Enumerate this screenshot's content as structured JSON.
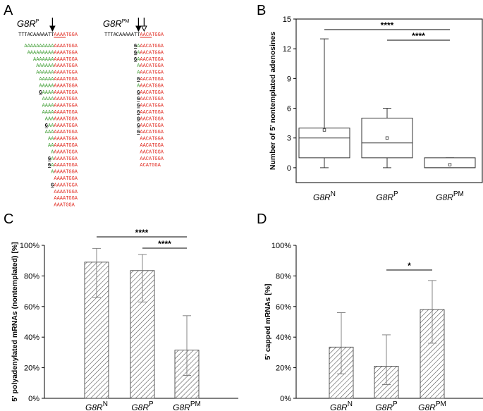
{
  "panels": {
    "a": "A",
    "b": "B",
    "c": "C",
    "d": "D"
  },
  "colors": {
    "green": "#3a9a2e",
    "red": "#e0281e",
    "axis": "#000000",
    "box": "#333333",
    "err": "#777777"
  },
  "panel_a": {
    "columns": [
      {
        "title_main": "G8R",
        "title_sup": "P",
        "reference": {
          "prefix": "TTTACAAAAATT",
          "suffix": "AAAATGGA"
        },
        "arrows": [
          "filled"
        ],
        "reads": [
          {
            "green": "AAAAAAAAAA",
            "red": "AAAATGGA"
          },
          {
            "green": "AAAAAAAAA",
            "red": "AAAATGGA"
          },
          {
            "green": "AAAAAAA",
            "red": "AAAATGGA"
          },
          {
            "green": "AAAAAA",
            "red": "AAAATGGA"
          },
          {
            "green": "AAAAAA",
            "red": "AAAATGGA"
          },
          {
            "green": "AAAAA",
            "red": "AAAATGGA"
          },
          {
            "green": "AAAAA",
            "red": "AAAATGGA"
          },
          {
            "mut": "G",
            "green": "AAAA",
            "red": "AAAATGGA"
          },
          {
            "green": "AAAA",
            "red": "AAAATGGA"
          },
          {
            "green": "AAAA",
            "red": "AAAATGGA"
          },
          {
            "green": "AAAA",
            "red": "AAAATGGA"
          },
          {
            "green": "AAA",
            "red": "AAAATGGA"
          },
          {
            "mut": "G",
            "green": "AA",
            "red": "AAAATGGA"
          },
          {
            "green": "AAA",
            "red": "AAAATGGA"
          },
          {
            "green": "AA",
            "red": "AAAATGGA"
          },
          {
            "green": "AA",
            "red": "AAAATGGA"
          },
          {
            "green": "A",
            "red": "AAAATGGA"
          },
          {
            "mut": "G",
            "green": "A",
            "red": "AAAATGGA"
          },
          {
            "mut": "G",
            "green": "A",
            "red": "AAAATGGA"
          },
          {
            "green": "A",
            "red": "AAAATGGA"
          },
          {
            "green": "",
            "red": "AAAATGGA"
          },
          {
            "mut": "G",
            "green": "",
            "red": "AAAATGGA"
          },
          {
            "green": "",
            "red": "AAAATGGA"
          },
          {
            "green": "",
            "red": "AAAATGGA"
          },
          {
            "green": "",
            "red": "AAATGGA"
          }
        ]
      },
      {
        "title_main": "G8R",
        "title_sup": "PM",
        "reference": {
          "prefix": "TTTACAAAAATT",
          "suffix": "AACATGGA"
        },
        "arrows": [
          "filled",
          "open"
        ],
        "reads": [
          {
            "mut": "G",
            "green": "A",
            "red": "AACATGGA"
          },
          {
            "mut": "G",
            "green": "A",
            "red": "AACATGGA"
          },
          {
            "mut": "G",
            "green": "A",
            "red": "AACATGGA"
          },
          {
            "green": "A",
            "red": "AACATGGA"
          },
          {
            "green": "A",
            "red": "AACATGGA"
          },
          {
            "mut": "G",
            "green": "",
            "red": "AACATGGA"
          },
          {
            "green": "A",
            "red": "AACATGGA"
          },
          {
            "mut": "G",
            "green": "",
            "red": "AACATGGA"
          },
          {
            "mut": "G",
            "green": "",
            "red": "AACATGGA"
          },
          {
            "mut": "G",
            "green": "",
            "red": "AACATGGA"
          },
          {
            "mut": "G",
            "green": "",
            "red": "AACATGGA"
          },
          {
            "mut": "G",
            "green": "",
            "red": "AACATGGA"
          },
          {
            "mut": "G",
            "green": "",
            "red": "AACATGGA"
          },
          {
            "mut": "G",
            "green": "",
            "red": "AACATGGA"
          },
          {
            "green": "",
            "red": "AACATGGA"
          },
          {
            "green": "",
            "red": "AACATGGA"
          },
          {
            "green": "",
            "red": "AACATGGA"
          },
          {
            "green": "",
            "red": "AACATGGA"
          },
          {
            "green": "",
            "red": "ACATGGA"
          }
        ]
      }
    ]
  },
  "chart_data": [
    {
      "id": "B",
      "type": "box",
      "ylabel": "Number of 5' nontemplated adenosines",
      "ylim": [
        -1.5,
        15
      ],
      "yticks": [
        0,
        3,
        6,
        9,
        12,
        15
      ],
      "categories": [
        {
          "main": "G8R",
          "sup": "N"
        },
        {
          "main": "G8R",
          "sup": "P"
        },
        {
          "main": "G8R",
          "sup": "PM"
        }
      ],
      "boxes": [
        {
          "min": 0,
          "q1": 1,
          "median": 3,
          "q3": 4,
          "max": 13,
          "mean": 3.8
        },
        {
          "min": 0,
          "q1": 1,
          "median": 2.5,
          "q3": 5,
          "max": 6,
          "mean": 3
        },
        {
          "min": 0,
          "q1": 0,
          "median": 0,
          "q3": 1,
          "max": 1,
          "mean": 0.3
        }
      ],
      "significance": [
        {
          "from": 0,
          "to": 2,
          "label": "****"
        },
        {
          "from": 1,
          "to": 2,
          "label": "****"
        }
      ]
    },
    {
      "id": "C",
      "type": "bar",
      "ylabel": "5' polyadenylated mRNAs (nontemplated) [%]",
      "ylim": [
        0,
        100
      ],
      "yticks": [
        "0%",
        "20%",
        "40%",
        "60%",
        "80%",
        "100%"
      ],
      "categories": [
        {
          "main": "G8R",
          "sup": "N"
        },
        {
          "main": "G8R",
          "sup": "P"
        },
        {
          "main": "G8R",
          "sup": "PM"
        }
      ],
      "values": [
        89,
        83.5,
        31.5
      ],
      "err_low": [
        66,
        63,
        15
      ],
      "err_high": [
        98,
        94,
        54
      ],
      "significance": [
        {
          "from": 0,
          "to": 2,
          "label": "****"
        },
        {
          "from": 1,
          "to": 2,
          "label": "****"
        }
      ]
    },
    {
      "id": "D",
      "type": "bar",
      "ylabel": "5' capped mRNAs [%]",
      "ylim": [
        0,
        100
      ],
      "yticks": [
        "0%",
        "20%",
        "40%",
        "60%",
        "80%",
        "100%"
      ],
      "categories": [
        {
          "main": "G8R",
          "sup": "N"
        },
        {
          "main": "G8R",
          "sup": "P"
        },
        {
          "main": "G8R",
          "sup": "PM"
        }
      ],
      "values": [
        33.5,
        21,
        58
      ],
      "err_low": [
        16,
        9,
        36
      ],
      "err_high": [
        56,
        41.5,
        77
      ],
      "significance": [
        {
          "from": 1,
          "to": 2,
          "label": "*"
        }
      ]
    }
  ]
}
